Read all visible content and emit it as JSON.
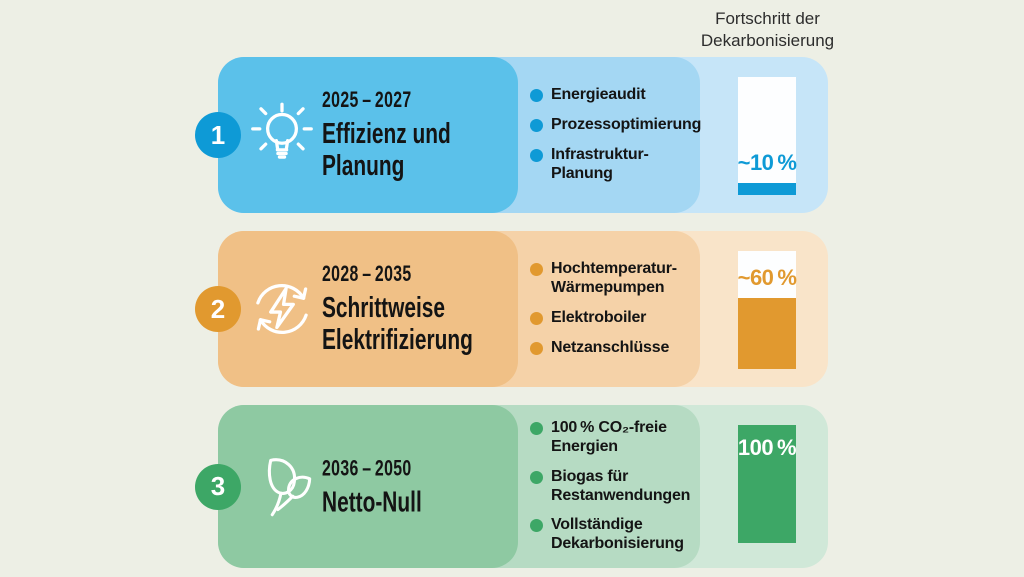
{
  "header": {
    "title": "Fortschritt der\nDekarbonisierung"
  },
  "background_color": "#edefe5",
  "phases": [
    {
      "number": "1",
      "years": "2025 – 2027",
      "title": "Effizienz und\nPlanung",
      "icon": "lightbulb-icon",
      "bullets": [
        "Energieaudit",
        "Prozessoptimierung",
        "Infrastruktur-\nPlanung"
      ],
      "progress_label": "~10 %",
      "progress_percent": 10,
      "colors": {
        "main": "#5bc1ea",
        "accent": "#0e9ad6",
        "list": "#a4d7f3",
        "panel": "#c6e5f8",
        "bar_bg": "#fdfeff",
        "label": "#0e9ad6"
      }
    },
    {
      "number": "2",
      "years": "2028 – 2035",
      "title": "Schrittweise\nElektrifizierung",
      "icon": "electrification-cycle-icon",
      "bullets": [
        "Hochtemperatur-\nWärmepumpen",
        "Elektroboiler",
        "Netzanschlüsse"
      ],
      "progress_label": "~60 %",
      "progress_percent": 60,
      "colors": {
        "main": "#f0c086",
        "accent": "#e1992f",
        "list": "#f5d2a8",
        "panel": "#f9e4c9",
        "bar_bg": "#fdfeff",
        "label": "#e1992f"
      }
    },
    {
      "number": "3",
      "years": "2036 – 2050",
      "title": "Netto-Null",
      "icon": "sprout-icon",
      "bullets": [
        "100 % CO₂-freie\nEnergien",
        "Biogas für\nRestanwendungen",
        "Vollständige\nDekarbonisierung"
      ],
      "progress_label": "100 %",
      "progress_percent": 100,
      "colors": {
        "main": "#8ec9a2",
        "accent": "#3da766",
        "list": "#b6dbc3",
        "panel": "#d0e8d8",
        "bar_bg": "#fdfeff",
        "label": "#ffffff"
      }
    }
  ]
}
